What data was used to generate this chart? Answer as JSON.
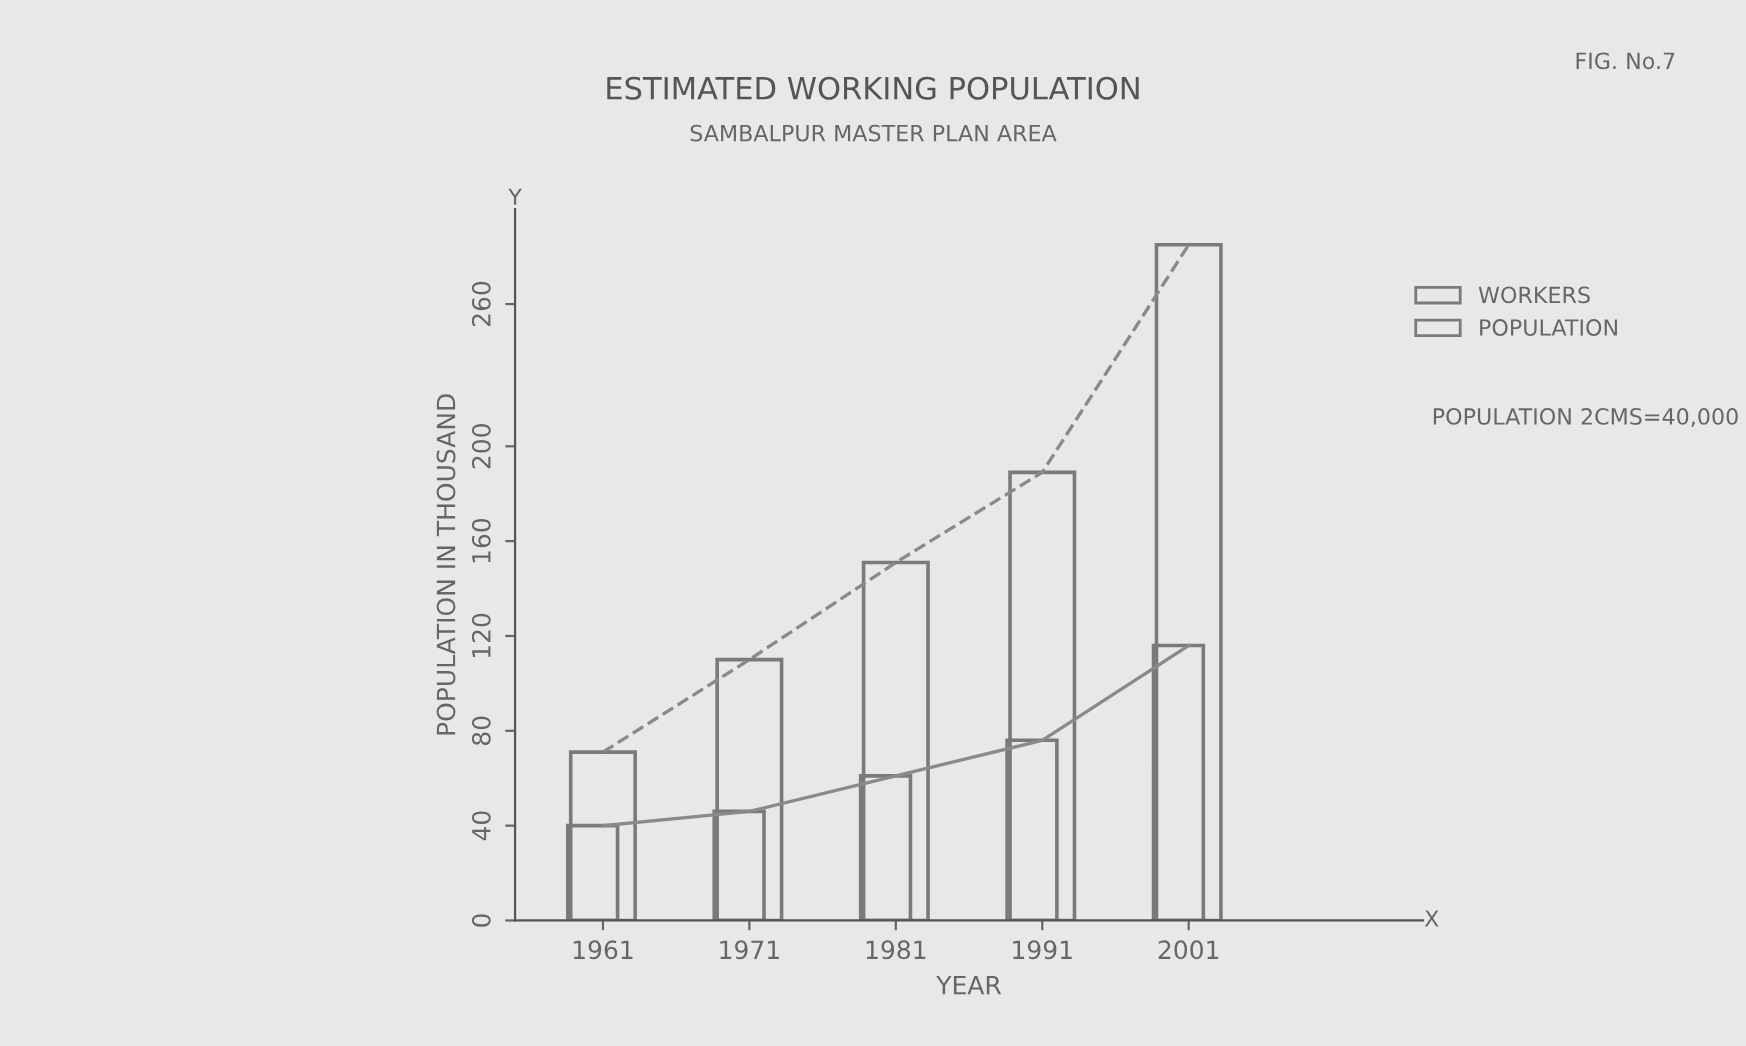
{
  "chart_data": {
    "type": "bar",
    "title": "ESTIMATED WORKING POPULATION",
    "subtitle": "SAMBALPUR MASTER PLAN AREA",
    "xlabel": "YEAR",
    "ylabel": "POPULATION IN THOUSAND",
    "categories": [
      "1961",
      "1971",
      "1981",
      "1991",
      "2001"
    ],
    "series": [
      {
        "name": "WORKERS",
        "color": "#7a7a7a",
        "values": [
          40,
          46,
          61,
          76,
          116
        ]
      },
      {
        "name": "POPULATION",
        "color": "#7a7a7a",
        "values": [
          71,
          110,
          151,
          189,
          285
        ]
      },
      {
        "type": "line",
        "color": "#8a8a8a",
        "line_style": "solid",
        "values": [
          40,
          46,
          61,
          76,
          116
        ]
      },
      {
        "type": "line",
        "color": "#8a8a8a",
        "line_style": "dashed",
        "values": [
          71,
          110,
          151,
          189,
          285
        ]
      }
    ],
    "ylim": [
      0,
      300
    ],
    "yticks": [
      0,
      40,
      80,
      120,
      160,
      200,
      260
    ],
    "grid": false,
    "legend": "top right",
    "annotations": [
      "FIG. No.7",
      "POPULATION 2CMS=40,000",
      "Y",
      "X"
    ]
  }
}
